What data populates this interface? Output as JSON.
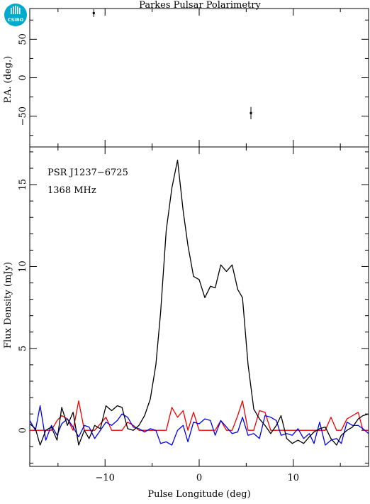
{
  "chart_data": [
    {
      "type": "scatter",
      "title": "Parkes Pulsar Polarimetry",
      "ylabel": "P.A. (deg.)",
      "xlim": [
        -18,
        18
      ],
      "ylim": [
        -90,
        90
      ],
      "y_ticks": [
        -50,
        0,
        50
      ],
      "y_tick_labels": [
        "−50",
        "0",
        "50"
      ],
      "points": [
        {
          "x": -11.2,
          "y": 84,
          "err": 5
        },
        {
          "x": 5.5,
          "y": -46,
          "err": 8
        }
      ]
    },
    {
      "type": "line",
      "xlabel": "Pulse Longitude (deg)",
      "ylabel": "Flux Density (mJy)",
      "xlim": [
        -18,
        18
      ],
      "ylim": [
        -2.2,
        17.3
      ],
      "x_ticks": [
        -10,
        0,
        10
      ],
      "x_tick_labels": [
        "−10",
        "0",
        "10"
      ],
      "y_ticks": [
        0,
        5,
        10,
        15
      ],
      "y_tick_labels": [
        "0",
        "5",
        "10",
        "15"
      ],
      "annotations": [
        "PSR J1237−6725",
        "1368 MHz"
      ],
      "series": [
        {
          "color": "#000000",
          "x": [
            -18,
            -17.4,
            -16.9,
            -16.3,
            -15.7,
            -15.1,
            -14.6,
            -14.0,
            -13.4,
            -12.8,
            -12.2,
            -11.7,
            -11.1,
            -10.5,
            -9.9,
            -9.3,
            -8.7,
            -8.2,
            -7.6,
            -7.0,
            -6.4,
            -5.8,
            -5.2,
            -4.6,
            -4.1,
            -3.5,
            -2.9,
            -2.3,
            -1.7,
            -1.2,
            -0.6,
            0,
            0.6,
            1.2,
            1.7,
            2.3,
            2.9,
            3.5,
            4.1,
            4.6,
            5.2,
            5.8,
            6.4,
            7.0,
            7.6,
            8.2,
            8.7,
            9.3,
            9.9,
            10.5,
            11.1,
            11.7,
            12.2,
            12.8,
            13.4,
            14.0,
            14.6,
            15.1,
            15.7,
            16.3,
            16.9,
            17.4,
            18
          ],
          "y": [
            0.4,
            0.1,
            -0.9,
            0.0,
            0.2,
            -0.6,
            1.4,
            0.3,
            1.1,
            -0.9,
            0.0,
            -0.5,
            0.3,
            0.1,
            1.5,
            1.2,
            1.5,
            1.4,
            0.1,
            0.0,
            0.3,
            0.9,
            1.9,
            4.0,
            7.2,
            12.2,
            14.8,
            16.5,
            13.4,
            11.3,
            9.4,
            9.2,
            8.1,
            8.8,
            8.7,
            10.1,
            9.7,
            10.1,
            8.6,
            8.1,
            4.0,
            1.3,
            0.7,
            0.3,
            -0.2,
            0.3,
            0.9,
            -0.5,
            -0.8,
            -0.6,
            -0.8,
            -0.4,
            -0.1,
            0.1,
            0.2,
            -0.5,
            -0.9,
            -0.3,
            0.0,
            0.2,
            0.7,
            0.9,
            1.0
          ]
        },
        {
          "color": "#ee0000",
          "x": [
            -18,
            -17.4,
            -16.9,
            -16.3,
            -15.7,
            -15.1,
            -14.6,
            -14.0,
            -13.4,
            -12.8,
            -12.2,
            -11.7,
            -11.1,
            -10.5,
            -9.9,
            -9.3,
            -8.7,
            -8.2,
            -7.6,
            -7.0,
            -6.4,
            -5.8,
            -5.2,
            -4.6,
            -4.1,
            -3.5,
            -2.9,
            -2.3,
            -1.7,
            -1.2,
            -0.6,
            0,
            0.6,
            1.2,
            1.7,
            2.3,
            2.9,
            3.5,
            4.1,
            4.6,
            5.2,
            5.8,
            6.4,
            7.0,
            7.6,
            8.2,
            8.7,
            9.3,
            9.9,
            10.5,
            11.1,
            11.7,
            12.2,
            12.8,
            13.4,
            14.0,
            14.6,
            15.1,
            15.7,
            16.3,
            16.9,
            17.4,
            18
          ],
          "y": [
            0.0,
            0.0,
            0.0,
            0.0,
            0.0,
            0.6,
            0.9,
            0.7,
            0.0,
            1.8,
            0.0,
            0.0,
            0.0,
            0.4,
            0.8,
            0.0,
            0.0,
            0.0,
            0.5,
            0.3,
            0.0,
            0.0,
            0.0,
            0.0,
            0.0,
            0.0,
            1.4,
            0.8,
            1.2,
            0.0,
            1.1,
            0.0,
            0.0,
            0.0,
            0.0,
            0.6,
            0.0,
            0.0,
            0.9,
            1.8,
            0.0,
            0.0,
            1.2,
            1.1,
            0.0,
            0.0,
            0.0,
            0.0,
            0.0,
            0.0,
            0.0,
            0.0,
            0.0,
            0.0,
            0.0,
            0.8,
            0.0,
            0.0,
            0.7,
            0.9,
            1.1,
            0.0,
            0.0
          ]
        },
        {
          "color": "#0000ee",
          "x": [
            -18,
            -17.4,
            -16.9,
            -16.3,
            -15.7,
            -15.1,
            -14.6,
            -14.0,
            -13.4,
            -12.8,
            -12.2,
            -11.7,
            -11.1,
            -10.5,
            -9.9,
            -9.3,
            -8.7,
            -8.2,
            -7.6,
            -7.0,
            -6.4,
            -5.8,
            -5.2,
            -4.6,
            -4.1,
            -3.5,
            -2.9,
            -2.3,
            -1.7,
            -1.2,
            -0.6,
            0,
            0.6,
            1.2,
            1.7,
            2.3,
            2.9,
            3.5,
            4.1,
            4.6,
            5.2,
            5.8,
            6.4,
            7.0,
            7.6,
            8.2,
            8.7,
            9.3,
            9.9,
            10.5,
            11.1,
            11.7,
            12.2,
            12.8,
            13.4,
            14.0,
            14.6,
            15.1,
            15.7,
            16.3,
            16.9,
            17.4,
            18
          ],
          "y": [
            0.6,
            0.0,
            1.5,
            -0.6,
            0.3,
            -0.3,
            0.4,
            0.7,
            0.2,
            -0.4,
            0.3,
            0.2,
            -0.5,
            0.0,
            0.5,
            0.3,
            0.6,
            1.0,
            0.8,
            0.2,
            0.1,
            -0.1,
            0.1,
            0.0,
            -0.8,
            -0.7,
            -0.9,
            0.0,
            0.3,
            -0.7,
            0.5,
            0.4,
            0.7,
            0.6,
            -0.3,
            0.6,
            0.2,
            -0.2,
            -0.1,
            0.8,
            -0.3,
            -0.2,
            -0.5,
            0.9,
            0.8,
            0.6,
            -0.3,
            -0.2,
            -0.3,
            0.1,
            -0.5,
            -0.2,
            -0.8,
            0.5,
            -0.9,
            -0.6,
            -0.5,
            -0.8,
            0.5,
            0.3,
            0.3,
            0.1,
            -0.2
          ]
        }
      ]
    }
  ]
}
